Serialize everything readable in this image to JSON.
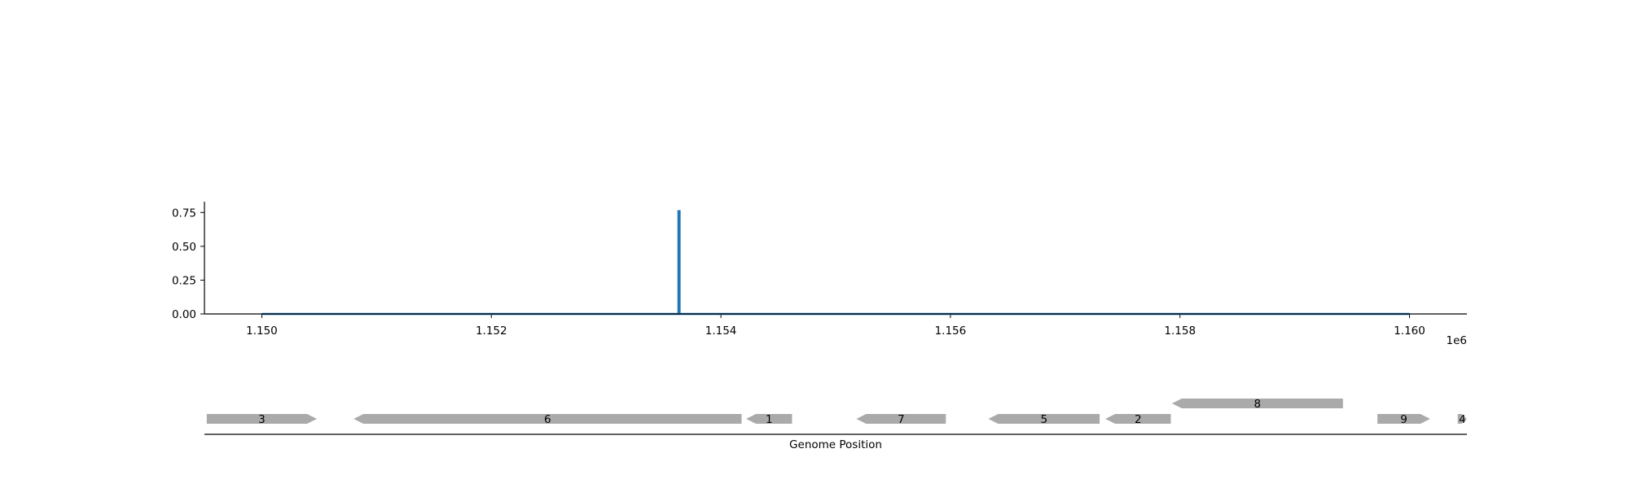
{
  "chart_data": [
    {
      "type": "line",
      "title": "",
      "xlabel": "",
      "ylabel": "",
      "x_offset_label": "1e6",
      "xlim": [
        1149500,
        1160500
      ],
      "ylim": [
        0,
        0.83
      ],
      "xticks": [
        1150000,
        1152000,
        1154000,
        1156000,
        1158000,
        1160000
      ],
      "xtick_labels": [
        "1.150",
        "1.152",
        "1.154",
        "1.156",
        "1.158",
        "1.160"
      ],
      "yticks": [
        0.0,
        0.25,
        0.5,
        0.75
      ],
      "ytick_labels": [
        "0.00",
        "0.25",
        "0.50",
        "0.75"
      ],
      "grid": false,
      "color": "#1f77b4",
      "series": [
        {
          "x": [
            1150000,
            1153630,
            1153630,
            1153640,
            1153640,
            1160000
          ],
          "y": [
            0,
            0,
            0.76,
            0.76,
            0,
            0
          ]
        }
      ]
    },
    {
      "type": "gene_track",
      "xlabel": "Genome Position",
      "xlim": [
        1149500,
        1160500
      ],
      "color": "#aaaaaa",
      "genes": [
        {
          "label": "3",
          "start": 1149520,
          "end": 1150480,
          "strand": "+",
          "row": 0
        },
        {
          "label": "6",
          "start": 1150800,
          "end": 1154180,
          "strand": "-",
          "row": 0
        },
        {
          "label": "1",
          "start": 1154220,
          "end": 1154620,
          "strand": "-",
          "row": 0
        },
        {
          "label": "7",
          "start": 1155180,
          "end": 1155960,
          "strand": "-",
          "row": 0
        },
        {
          "label": "5",
          "start": 1156330,
          "end": 1157300,
          "strand": "-",
          "row": 0
        },
        {
          "label": "2",
          "start": 1157350,
          "end": 1157920,
          "strand": "-",
          "row": 0
        },
        {
          "label": "8",
          "start": 1157930,
          "end": 1159420,
          "strand": "-",
          "row": 1
        },
        {
          "label": "9",
          "start": 1159720,
          "end": 1160180,
          "strand": "+",
          "row": 0
        },
        {
          "label": "4",
          "start": 1160420,
          "end": 1160500,
          "strand": "+",
          "row": 0
        }
      ]
    }
  ]
}
